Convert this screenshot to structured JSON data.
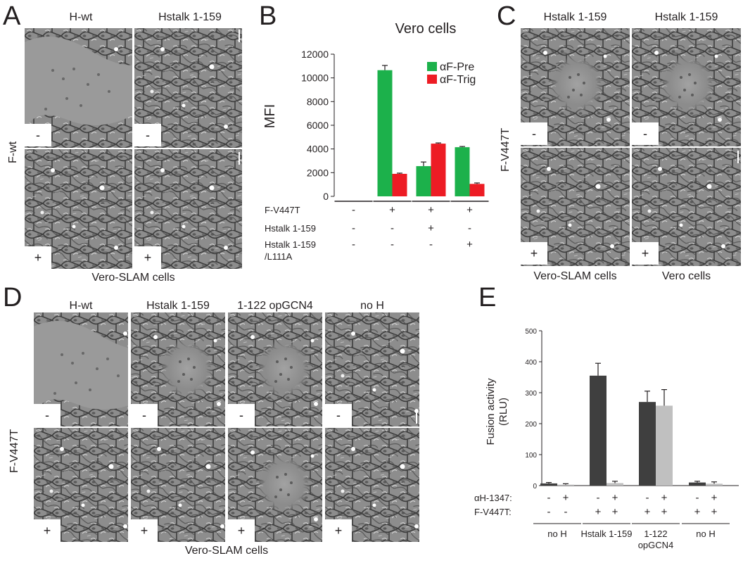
{
  "panels": {
    "A": {
      "letter": "A",
      "columns": [
        "H-wt",
        "Hstalk 1-159"
      ],
      "row_label": "F-wt",
      "signs": [
        "-",
        "-",
        "+",
        "+"
      ],
      "caption": "Vero-SLAM cells"
    },
    "B": {
      "letter": "B",
      "grid_rows": [
        {
          "label": "F-V447T",
          "signs": [
            "-",
            "+",
            "+",
            "+"
          ]
        },
        {
          "label": "Hstalk 1-159",
          "signs": [
            "-",
            "-",
            "+",
            "-"
          ]
        },
        {
          "label": "Hstalk 1-159",
          "label2": "/L111A",
          "signs": [
            "-",
            "-",
            "-",
            "+"
          ]
        }
      ]
    },
    "C": {
      "letter": "C",
      "columns": [
        "Hstalk 1-159",
        "Hstalk 1-159"
      ],
      "row_label": "F-V447T",
      "signs": [
        "-",
        "-",
        "+",
        "+"
      ],
      "captions": [
        "Vero-SLAM cells",
        "Vero cells"
      ]
    },
    "D": {
      "letter": "D",
      "columns": [
        "H-wt",
        "Hstalk 1-159",
        "1-122 opGCN4",
        "no H"
      ],
      "row_label": "F-V447T",
      "signs": [
        "-",
        "-",
        "-",
        "-",
        "+",
        "+",
        "+",
        "+"
      ],
      "caption": "Vero-SLAM cells"
    },
    "E": {
      "letter": "E",
      "grid_rows": [
        {
          "label": "αH-1347:",
          "signs": [
            "-",
            "+",
            "-",
            "+",
            "-",
            "+",
            "-",
            "+"
          ]
        },
        {
          "label": "F-V447T:",
          "signs": [
            "-",
            "-",
            "+",
            "+",
            "+",
            "+",
            "+",
            "+"
          ]
        }
      ],
      "groups": [
        {
          "label": "no H"
        },
        {
          "label": "Hstalk 1-159"
        },
        {
          "label": "1-122",
          "label2": "opGCN4"
        },
        {
          "label": "no H"
        }
      ]
    }
  },
  "chart_data": [
    {
      "type": "bar",
      "panel": "B",
      "title": "Vero cells",
      "ylabel": "MFI",
      "xlabel": "",
      "ylim": [
        0,
        12000
      ],
      "yticks": [
        0,
        2000,
        4000,
        6000,
        8000,
        10000,
        12000
      ],
      "ytick_labels": [
        "0",
        "2000",
        "4000",
        "6000",
        "8000",
        "10000",
        "12000"
      ],
      "categories": [
        "1",
        "2",
        "3",
        "4"
      ],
      "series": [
        {
          "name": "αF-Pre",
          "color": "#1cb14b",
          "values": [
            0,
            10650,
            2550,
            4150
          ],
          "errors": [
            0,
            400,
            350,
            60
          ]
        },
        {
          "name": "αF-Trig",
          "color": "#ed1c24",
          "values": [
            0,
            1900,
            4450,
            1050
          ],
          "errors": [
            0,
            60,
            60,
            80
          ]
        }
      ],
      "legend_position": "top-right",
      "grid": false
    },
    {
      "type": "bar",
      "panel": "E",
      "title": "",
      "ylabel": "Fusion activity",
      "ylabel2": "(RLU)",
      "xlabel": "",
      "ylim": [
        0,
        500
      ],
      "yticks": [
        0,
        100,
        200,
        300,
        400,
        500
      ],
      "ytick_labels": [
        "0",
        "100",
        "200",
        "300",
        "400",
        "500"
      ],
      "categories": [
        "1",
        "2",
        "3",
        "4",
        "5",
        "6",
        "7",
        "8"
      ],
      "values": [
        7,
        3,
        355,
        8,
        270,
        258,
        10,
        6
      ],
      "errors": [
        3,
        3,
        40,
        6,
        35,
        52,
        4,
        6
      ],
      "colors": [
        "#3f3f3f",
        "#c0c0c0",
        "#3f3f3f",
        "#c0c0c0",
        "#3f3f3f",
        "#c0c0c0",
        "#3f3f3f",
        "#c0c0c0"
      ],
      "grid": false
    }
  ]
}
